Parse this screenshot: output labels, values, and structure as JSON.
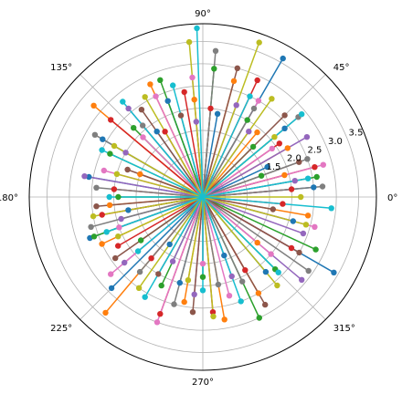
{
  "chart_data": {
    "type": "scatter",
    "projection": "polar",
    "title": "",
    "angle_unit": "degrees",
    "angle_ticks": [
      "0°",
      "45°",
      "90°",
      "135°",
      "180°",
      "225°",
      "270°",
      "315°"
    ],
    "angle_tick_values": [
      0,
      45,
      90,
      135,
      180,
      225,
      270,
      315
    ],
    "radial_ticks": [
      "1.5",
      "2.0",
      "2.5",
      "3.0",
      "3.5"
    ],
    "radial_tick_values": [
      1.5,
      2.0,
      2.5,
      3.0,
      3.5
    ],
    "rlim": [
      0,
      3.9
    ],
    "radial_label_angle_deg": 22.5,
    "grid": true,
    "marker": "o",
    "style": "stem lines from origin to each point",
    "series": [
      {
        "color": "#1f77b4",
        "points": [
          [
            330,
            3.4
          ],
          [
            200,
            2.7
          ],
          [
            60,
            3.6
          ],
          [
            225,
            2.9
          ],
          [
            25,
            1.6
          ],
          [
            290,
            1.4
          ],
          [
            150,
            2.6
          ],
          [
            110,
            2.3
          ],
          [
            5,
            2.5
          ],
          [
            255,
            2.0
          ],
          [
            170,
            2.6
          ],
          [
            80,
            1.9
          ],
          [
            310,
            2.2
          ],
          [
            40,
            2.4
          ],
          [
            190,
            1.7
          ],
          [
            125,
            1.8
          ],
          [
            345,
            2.1
          ],
          [
            235,
            1.3
          ]
        ]
      },
      {
        "color": "#ff7f0e",
        "points": [
          [
            140,
            3.2
          ],
          [
            230,
            3.4
          ],
          [
            15,
            1.9
          ],
          [
            300,
            2.5
          ],
          [
            95,
            2.2
          ],
          [
            260,
            2.4
          ],
          [
            75,
            2.7
          ],
          [
            185,
            2.1
          ],
          [
            320,
            1.6
          ],
          [
            50,
            1.9
          ],
          [
            160,
            1.5
          ],
          [
            280,
            2.8
          ],
          [
            350,
            2.4
          ],
          [
            205,
            2.5
          ],
          [
            115,
            2.8
          ],
          [
            30,
            2.2
          ]
        ]
      },
      {
        "color": "#2ca02c",
        "points": [
          [
            110,
            2.8
          ],
          [
            295,
            3.0
          ],
          [
            180,
            1.9
          ],
          [
            10,
            2.6
          ],
          [
            245,
            2.2
          ],
          [
            60,
            2.0
          ],
          [
            335,
            2.8
          ],
          [
            155,
            2.3
          ],
          [
            270,
            1.8
          ],
          [
            200,
            2.6
          ],
          [
            85,
            2.9
          ],
          [
            20,
            1.4
          ],
          [
            215,
            1.7
          ],
          [
            135,
            2.2
          ],
          [
            315,
            2.3
          ],
          [
            45,
            1.6
          ]
        ]
      },
      {
        "color": "#d62728",
        "points": [
          [
            15,
            2.6
          ],
          [
            100,
            2.4
          ],
          [
            210,
            2.2
          ],
          [
            330,
            2.3
          ],
          [
            65,
            2.9
          ],
          [
            175,
            2.0
          ],
          [
            275,
            2.6
          ],
          [
            35,
            2.1
          ],
          [
            140,
            2.7
          ],
          [
            250,
            2.8
          ],
          [
            355,
            1.8
          ],
          [
            190,
            2.3
          ],
          [
            300,
            1.9
          ],
          [
            85,
            2.0
          ],
          [
            230,
            1.8
          ],
          [
            120,
            1.7
          ],
          [
            5,
            2.0
          ]
        ]
      },
      {
        "color": "#9467bd",
        "points": [
          [
            170,
            2.7
          ],
          [
            340,
            2.4
          ],
          [
            55,
            1.8
          ],
          [
            220,
            2.3
          ],
          [
            130,
            2.6
          ],
          [
            290,
            1.9
          ],
          [
            10,
            2.1
          ],
          [
            245,
            1.6
          ],
          [
            95,
            1.7
          ],
          [
            320,
            2.9
          ],
          [
            195,
            1.9
          ],
          [
            70,
            2.2
          ],
          [
            150,
            2.0
          ],
          [
            265,
            2.2
          ],
          [
            30,
            2.7
          ]
        ]
      },
      {
        "color": "#8c564b",
        "points": [
          [
            265,
            2.6
          ],
          [
            75,
            3.0
          ],
          [
            330,
            2.5
          ],
          [
            160,
            1.8
          ],
          [
            20,
            2.3
          ],
          [
            215,
            2.4
          ],
          [
            105,
            1.9
          ],
          [
            300,
            2.8
          ],
          [
            45,
            2.6
          ],
          [
            185,
            2.4
          ],
          [
            240,
            2.0
          ],
          [
            125,
            2.4
          ],
          [
            350,
            1.6
          ]
        ]
      },
      {
        "color": "#e377c2",
        "points": [
          [
            15,
            2.8
          ],
          [
            250,
            3.0
          ],
          [
            115,
            2.5
          ],
          [
            200,
            2.0
          ],
          [
            320,
            2.0
          ],
          [
            60,
            2.5
          ],
          [
            165,
            2.3
          ],
          [
            285,
            2.3
          ],
          [
            35,
            1.9
          ],
          [
            220,
            2.7
          ],
          [
            95,
            2.7
          ],
          [
            135,
            1.9
          ],
          [
            345,
            2.6
          ],
          [
            270,
            1.5
          ]
        ]
      },
      {
        "color": "#7f7f7f",
        "points": [
          [
            85,
            3.3
          ],
          [
            325,
            2.9
          ],
          [
            175,
            2.4
          ],
          [
            20,
            2.5
          ],
          [
            255,
            2.5
          ],
          [
            130,
            2.1
          ],
          [
            5,
            2.7
          ],
          [
            230,
            2.2
          ],
          [
            60,
            2.3
          ],
          [
            295,
            2.1
          ],
          [
            150,
            2.8
          ],
          [
            195,
            2.6
          ],
          [
            40,
            2.8
          ],
          [
            280,
            2.0
          ]
        ]
      },
      {
        "color": "#bcbd22",
        "points": [
          [
            70,
            3.7
          ],
          [
            275,
            2.7
          ],
          [
            95,
            3.5
          ],
          [
            190,
            2.5
          ],
          [
            310,
            2.6
          ],
          [
            40,
            2.1
          ],
          [
            150,
            2.3
          ],
          [
            235,
            2.5
          ],
          [
            0,
            2.2
          ],
          [
            120,
            2.6
          ],
          [
            345,
            2.4
          ],
          [
            205,
            2.1
          ],
          [
            55,
            2.7
          ],
          [
            260,
            1.9
          ],
          [
            165,
            2.0
          ]
        ]
      },
      {
        "color": "#17becf",
        "points": [
          [
            92,
            3.8
          ],
          [
            40,
            2.9
          ],
          [
            240,
            2.6
          ],
          [
            155,
            2.5
          ],
          [
            315,
            2.4
          ],
          [
            10,
            2.4
          ],
          [
            200,
            2.3
          ],
          [
            270,
            2.1
          ],
          [
            65,
            2.5
          ],
          [
            130,
            2.8
          ],
          [
            355,
            2.9
          ],
          [
            220,
            1.9
          ],
          [
            105,
            2.6
          ],
          [
            180,
            2.1
          ],
          [
            290,
            2.5
          ]
        ]
      }
    ]
  }
}
